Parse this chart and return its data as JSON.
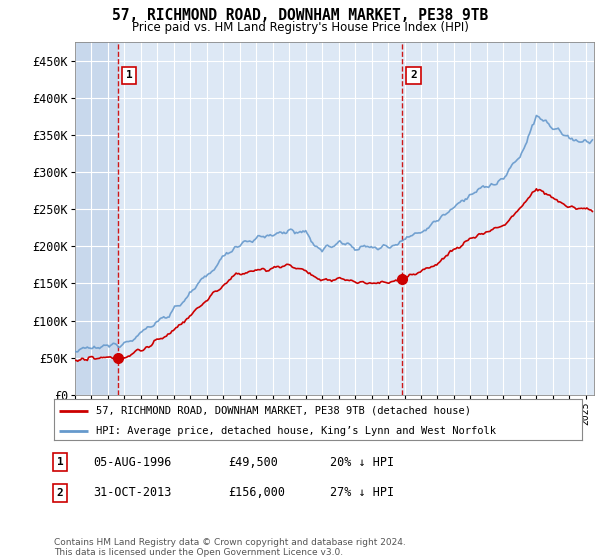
{
  "title": "57, RICHMOND ROAD, DOWNHAM MARKET, PE38 9TB",
  "subtitle": "Price paid vs. HM Land Registry's House Price Index (HPI)",
  "legend_line1": "57, RICHMOND ROAD, DOWNHAM MARKET, PE38 9TB (detached house)",
  "legend_line2": "HPI: Average price, detached house, King’s Lynn and West Norfolk",
  "annotation1_label": "1",
  "annotation1_date": "05-AUG-1996",
  "annotation1_price": "£49,500",
  "annotation1_hpi": "20% ↓ HPI",
  "annotation2_label": "2",
  "annotation2_date": "31-OCT-2013",
  "annotation2_price": "£156,000",
  "annotation2_hpi": "27% ↓ HPI",
  "footer": "Contains HM Land Registry data © Crown copyright and database right 2024.\nThis data is licensed under the Open Government Licence v3.0.",
  "price_paid_color": "#cc0000",
  "hpi_color": "#6699cc",
  "background_color": "#dde8f5",
  "ylim": [
    0,
    475000
  ],
  "yticks": [
    0,
    50000,
    100000,
    150000,
    200000,
    250000,
    300000,
    350000,
    400000,
    450000
  ],
  "ytick_labels": [
    "£0",
    "£50K",
    "£100K",
    "£150K",
    "£200K",
    "£250K",
    "£300K",
    "£350K",
    "£400K",
    "£450K"
  ],
  "sale1_x": 1996.58,
  "sale1_y": 49500,
  "sale2_x": 2013.83,
  "sale2_y": 156000,
  "xlim_left": 1994.0,
  "xlim_right": 2025.5
}
